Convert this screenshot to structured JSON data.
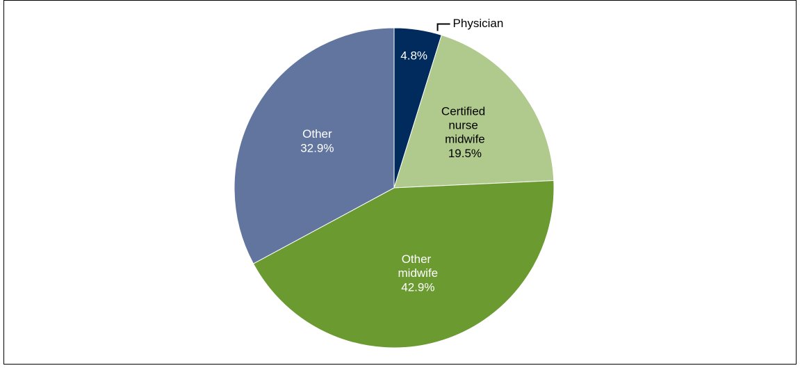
{
  "chart_data": {
    "type": "pie",
    "categories": [
      "Physician",
      "Certified nurse midwife",
      "Other midwife",
      "Other"
    ],
    "values": [
      4.8,
      19.5,
      42.9,
      32.9
    ],
    "value_labels": [
      "4.8%",
      "19.5%",
      "42.9%",
      "32.9%"
    ],
    "colors": [
      "#002b5c",
      "#b0c98c",
      "#6a9a30",
      "#62759e"
    ],
    "label_colors": [
      "#000000",
      "#000000",
      "#ffffff",
      "#ffffff"
    ],
    "value_label_colors": [
      "#ffffff",
      "#000000",
      "#ffffff",
      "#ffffff"
    ]
  }
}
